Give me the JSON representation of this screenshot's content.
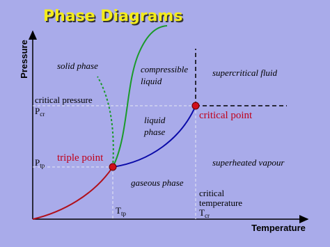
{
  "title": "Phase Diagrams",
  "axes": {
    "y": "Pressure",
    "x": "Temperature"
  },
  "regions": {
    "solid": "solid phase",
    "compressible_liquid": [
      "compressible",
      "liquid"
    ],
    "supercritical": "supercritical fluid",
    "liquid": [
      "liquid",
      "phase"
    ],
    "superheated": "superheated vapour",
    "gaseous": "gaseous phase"
  },
  "markers": {
    "critical_pressure": "critical pressure",
    "p_cr": {
      "symbol": "P",
      "subscript": "cr"
    },
    "p_tp": {
      "symbol": "P",
      "subscript": "tp"
    },
    "t_tp": {
      "symbol": "T",
      "subscript": "tp"
    },
    "critical_temperature": [
      "critical",
      "temperature"
    ],
    "t_cr": {
      "symbol": "T",
      "subscript": "cr"
    }
  },
  "points": {
    "triple": "triple point",
    "critical": "critical point"
  }
}
